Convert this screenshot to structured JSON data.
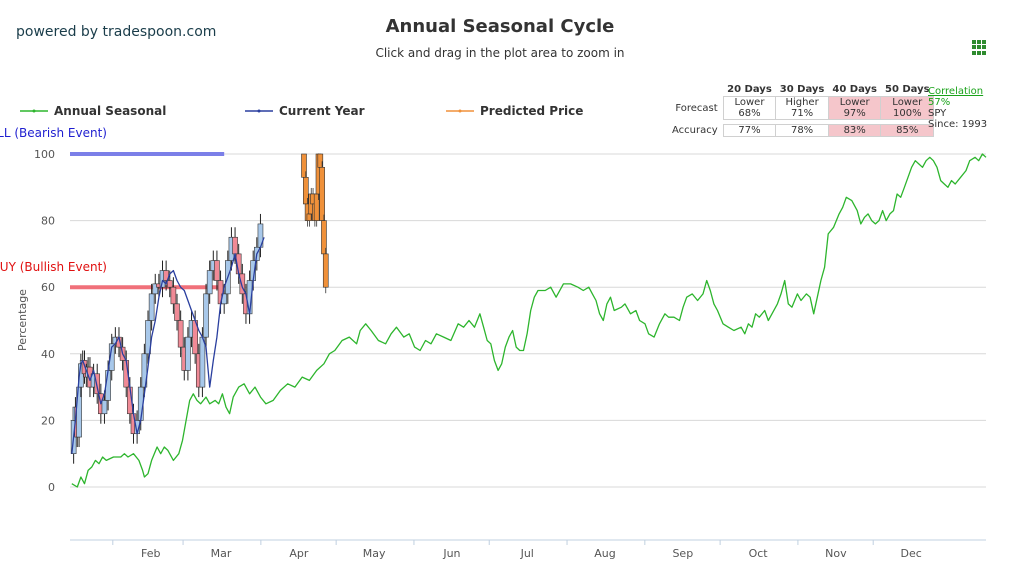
{
  "header": {
    "powered_by": "powered by tradespoon.com",
    "title": "Annual Seasonal Cycle",
    "subtitle": "Click and drag in the plot area to zoom in"
  },
  "legend": [
    {
      "name": "Annual Seasonal",
      "color": "#2db52d"
    },
    {
      "name": "Current Year",
      "color": "#2a3f9f"
    },
    {
      "name": "Predicted Price",
      "color": "#f0913a"
    }
  ],
  "stats": {
    "headers": [
      "20 Days",
      "30 Days",
      "40 Days",
      "50 Days"
    ],
    "forecast_label": "Forecast",
    "accuracy_label": "Accuracy",
    "forecast": [
      {
        "dir": "Lower",
        "pct": "68%",
        "highlight": false
      },
      {
        "dir": "Higher",
        "pct": "71%",
        "highlight": false
      },
      {
        "dir": "Lower",
        "pct": "97%",
        "highlight": true
      },
      {
        "dir": "Lower",
        "pct": "100%",
        "highlight": true
      }
    ],
    "accuracy": [
      {
        "pct": "77%",
        "highlight": false
      },
      {
        "pct": "78%",
        "highlight": false
      },
      {
        "pct": "83%",
        "highlight": true
      },
      {
        "pct": "85%",
        "highlight": true
      }
    ]
  },
  "correlation": {
    "label": "Correlation",
    "value": "57%",
    "symbol": "SPY",
    "since": "Since: 1993"
  },
  "chart_data": {
    "type": "line",
    "ylabel": "Percentage",
    "ylim": [
      -15,
      100
    ],
    "yticks": [
      0,
      20,
      40,
      60,
      80,
      100
    ],
    "grid": true,
    "months": [
      "Feb",
      "Mar",
      "Apr",
      "May",
      "Jun",
      "Jul",
      "Aug",
      "Sep",
      "Oct",
      "Nov",
      "Dec"
    ],
    "plot_bands": [
      {
        "label": "SELL (Bearish Event)",
        "value": 100,
        "color": "#7b7fe8",
        "text_color": "#1f1fd0",
        "until_day": 85
      },
      {
        "label": "BUY (Bullish Event)",
        "value": 60,
        "color": "#f0707a",
        "text_color": "#e01010",
        "until_day": 85
      }
    ],
    "annual_seasonal": {
      "name": "Annual Seasonal",
      "points": [
        [
          1,
          1
        ],
        [
          4,
          0
        ],
        [
          6,
          3
        ],
        [
          8,
          1
        ],
        [
          10,
          5
        ],
        [
          12,
          6
        ],
        [
          14,
          8
        ],
        [
          16,
          7
        ],
        [
          18,
          9
        ],
        [
          20,
          8
        ],
        [
          24,
          9
        ],
        [
          28,
          9
        ],
        [
          30,
          10
        ],
        [
          32,
          9
        ],
        [
          35,
          10
        ],
        [
          38,
          8
        ],
        [
          40,
          5
        ],
        [
          41,
          3
        ],
        [
          43,
          4
        ],
        [
          45,
          8
        ],
        [
          48,
          12
        ],
        [
          50,
          10
        ],
        [
          52,
          12
        ],
        [
          54,
          11
        ],
        [
          57,
          8
        ],
        [
          60,
          10
        ],
        [
          62,
          14
        ],
        [
          64,
          20
        ],
        [
          66,
          26
        ],
        [
          68,
          28
        ],
        [
          70,
          26
        ],
        [
          72,
          25
        ],
        [
          75,
          27
        ],
        [
          77,
          25
        ],
        [
          80,
          26
        ],
        [
          82,
          25
        ],
        [
          84,
          28
        ],
        [
          86,
          24
        ],
        [
          88,
          22
        ],
        [
          90,
          27
        ],
        [
          93,
          30
        ],
        [
          96,
          31
        ],
        [
          99,
          28
        ],
        [
          102,
          30
        ],
        [
          105,
          27
        ],
        [
          108,
          25
        ],
        [
          112,
          26
        ],
        [
          116,
          29
        ],
        [
          120,
          31
        ],
        [
          124,
          30
        ],
        [
          128,
          33
        ],
        [
          132,
          32
        ],
        [
          136,
          35
        ],
        [
          140,
          37
        ],
        [
          143,
          40
        ],
        [
          146,
          41
        ],
        [
          150,
          44
        ],
        [
          154,
          45
        ],
        [
          158,
          43
        ],
        [
          160,
          47
        ],
        [
          163,
          49
        ],
        [
          166,
          47
        ],
        [
          170,
          44
        ],
        [
          174,
          43
        ],
        [
          177,
          46
        ],
        [
          180,
          48
        ],
        [
          184,
          45
        ],
        [
          187,
          46
        ],
        [
          190,
          42
        ],
        [
          193,
          41
        ],
        [
          196,
          44
        ],
        [
          199,
          43
        ],
        [
          202,
          46
        ],
        [
          206,
          45
        ],
        [
          210,
          44
        ],
        [
          214,
          49
        ],
        [
          217,
          48
        ],
        [
          220,
          50
        ],
        [
          223,
          48
        ],
        [
          226,
          52
        ],
        [
          228,
          48
        ],
        [
          230,
          44
        ],
        [
          232,
          43
        ],
        [
          234,
          38
        ],
        [
          236,
          35
        ],
        [
          238,
          37
        ],
        [
          240,
          42
        ],
        [
          242,
          45
        ],
        [
          244,
          47
        ],
        [
          246,
          42
        ],
        [
          248,
          41
        ],
        [
          250,
          41
        ],
        [
          252,
          46
        ],
        [
          254,
          53
        ],
        [
          256,
          57
        ],
        [
          258,
          59
        ],
        [
          262,
          59
        ],
        [
          265,
          60
        ],
        [
          268,
          57
        ],
        [
          272,
          61
        ],
        [
          276,
          61
        ],
        [
          280,
          60
        ],
        [
          283,
          59
        ],
        [
          286,
          60
        ],
        [
          288,
          58
        ],
        [
          290,
          56
        ],
        [
          292,
          52
        ],
        [
          294,
          50
        ],
        [
          296,
          55
        ],
        [
          298,
          57
        ],
        [
          300,
          53
        ],
        [
          304,
          54
        ],
        [
          306,
          55
        ],
        [
          309,
          52
        ],
        [
          312,
          53
        ],
        [
          314,
          50
        ],
        [
          317,
          49
        ],
        [
          319,
          46
        ],
        [
          322,
          45
        ],
        [
          325,
          49
        ],
        [
          328,
          52
        ],
        [
          330,
          51
        ],
        [
          333,
          51
        ],
        [
          336,
          50
        ],
        [
          338,
          54
        ],
        [
          340,
          57
        ],
        [
          343,
          58
        ],
        [
          346,
          56
        ],
        [
          349,
          58
        ],
        [
          351,
          62
        ],
        [
          353,
          59
        ],
        [
          355,
          55
        ],
        [
          357,
          53
        ],
        [
          360,
          49
        ],
        [
          363,
          48
        ],
        [
          366,
          47
        ],
        [
          370,
          48
        ],
        [
          372,
          46
        ],
        [
          374,
          49
        ],
        [
          376,
          48
        ],
        [
          378,
          52
        ],
        [
          380,
          51
        ],
        [
          383,
          53
        ],
        [
          385,
          50
        ],
        [
          387,
          52
        ],
        [
          390,
          55
        ],
        [
          392,
          58
        ],
        [
          394,
          62
        ],
        [
          396,
          55
        ],
        [
          398,
          54
        ],
        [
          401,
          58
        ],
        [
          403,
          56
        ],
        [
          406,
          58
        ],
        [
          408,
          57
        ],
        [
          410,
          52
        ],
        [
          412,
          57
        ],
        [
          414,
          62
        ],
        [
          416,
          66
        ],
        [
          418,
          76
        ],
        [
          421,
          78
        ],
        [
          424,
          82
        ],
        [
          426,
          84
        ],
        [
          428,
          87
        ],
        [
          431,
          86
        ],
        [
          434,
          83
        ],
        [
          436,
          79
        ],
        [
          438,
          81
        ],
        [
          440,
          82
        ],
        [
          442,
          80
        ],
        [
          444,
          79
        ],
        [
          446,
          80
        ],
        [
          448,
          83
        ],
        [
          450,
          80
        ],
        [
          452,
          82
        ],
        [
          454,
          83
        ],
        [
          456,
          88
        ],
        [
          458,
          87
        ],
        [
          460,
          90
        ],
        [
          462,
          93
        ],
        [
          464,
          96
        ],
        [
          466,
          98
        ],
        [
          468,
          97
        ],
        [
          470,
          96
        ],
        [
          472,
          98
        ],
        [
          474,
          99
        ],
        [
          476,
          98
        ],
        [
          478,
          96
        ],
        [
          480,
          92
        ],
        [
          482,
          91
        ],
        [
          484,
          90
        ],
        [
          486,
          92
        ],
        [
          488,
          91
        ],
        [
          491,
          93
        ],
        [
          494,
          95
        ],
        [
          496,
          98
        ],
        [
          499,
          99
        ],
        [
          501,
          98
        ],
        [
          503,
          100
        ],
        [
          505,
          99
        ]
      ]
    },
    "current_year": {
      "name": "Current Year",
      "points": [
        [
          1,
          10
        ],
        [
          3,
          20
        ],
        [
          5,
          33
        ],
        [
          6,
          37
        ],
        [
          7,
          38
        ],
        [
          9,
          35
        ],
        [
          11,
          32
        ],
        [
          13,
          35
        ],
        [
          15,
          30
        ],
        [
          17,
          25
        ],
        [
          19,
          28
        ],
        [
          21,
          35
        ],
        [
          23,
          42
        ],
        [
          25,
          43
        ],
        [
          27,
          45
        ],
        [
          29,
          40
        ],
        [
          31,
          38
        ],
        [
          33,
          30
        ],
        [
          35,
          22
        ],
        [
          37,
          16
        ],
        [
          39,
          20
        ],
        [
          41,
          28
        ],
        [
          43,
          36
        ],
        [
          45,
          45
        ],
        [
          47,
          50
        ],
        [
          49,
          57
        ],
        [
          51,
          62
        ],
        [
          53,
          61
        ],
        [
          55,
          64
        ],
        [
          57,
          65
        ],
        [
          59,
          62
        ],
        [
          61,
          60
        ],
        [
          63,
          59
        ],
        [
          65,
          56
        ],
        [
          67,
          53
        ],
        [
          69,
          50
        ],
        [
          71,
          47
        ],
        [
          73,
          45
        ],
        [
          75,
          42
        ],
        [
          77,
          30
        ],
        [
          79,
          38
        ],
        [
          81,
          45
        ],
        [
          83,
          55
        ],
        [
          85,
          60
        ],
        [
          87,
          63
        ],
        [
          89,
          66
        ],
        [
          91,
          70
        ],
        [
          93,
          64
        ],
        [
          95,
          60
        ],
        [
          97,
          58
        ],
        [
          99,
          52
        ],
        [
          101,
          62
        ],
        [
          103,
          70
        ],
        [
          105,
          72
        ],
        [
          107,
          75
        ]
      ]
    },
    "current_candles": [
      [
        1,
        10
      ],
      [
        2,
        20
      ],
      [
        3,
        24
      ],
      [
        4,
        15
      ],
      [
        5,
        30
      ],
      [
        6,
        37
      ],
      [
        7,
        38
      ],
      [
        8,
        34
      ],
      [
        9,
        33
      ],
      [
        10,
        36
      ],
      [
        11,
        30
      ],
      [
        13,
        34
      ],
      [
        15,
        28
      ],
      [
        17,
        22
      ],
      [
        19,
        26
      ],
      [
        21,
        35
      ],
      [
        23,
        43
      ],
      [
        25,
        45
      ],
      [
        27,
        42
      ],
      [
        29,
        38
      ],
      [
        31,
        30
      ],
      [
        33,
        22
      ],
      [
        35,
        16
      ],
      [
        37,
        20
      ],
      [
        39,
        30
      ],
      [
        41,
        40
      ],
      [
        43,
        50
      ],
      [
        45,
        58
      ],
      [
        47,
        61
      ],
      [
        49,
        60
      ],
      [
        51,
        65
      ],
      [
        53,
        62
      ],
      [
        55,
        60
      ],
      [
        57,
        55
      ],
      [
        59,
        50
      ],
      [
        61,
        42
      ],
      [
        63,
        35
      ],
      [
        65,
        45
      ],
      [
        67,
        50
      ],
      [
        69,
        40
      ],
      [
        71,
        30
      ],
      [
        73,
        45
      ],
      [
        75,
        58
      ],
      [
        77,
        65
      ],
      [
        79,
        68
      ],
      [
        81,
        62
      ],
      [
        83,
        55
      ],
      [
        85,
        58
      ],
      [
        87,
        68
      ],
      [
        89,
        75
      ],
      [
        91,
        70
      ],
      [
        93,
        64
      ],
      [
        95,
        58
      ],
      [
        97,
        52
      ],
      [
        99,
        62
      ],
      [
        101,
        68
      ],
      [
        103,
        72
      ],
      [
        105,
        79
      ]
    ],
    "predicted_price": {
      "name": "Predicted Price",
      "points": [
        [
          128,
          100
        ],
        [
          129,
          93
        ],
        [
          130,
          85
        ],
        [
          131,
          80
        ],
        [
          132,
          82
        ],
        [
          133,
          88
        ],
        [
          134,
          85
        ],
        [
          135,
          80
        ],
        [
          136,
          88
        ],
        [
          137,
          100
        ],
        [
          138,
          96
        ],
        [
          139,
          80
        ],
        [
          140,
          70
        ],
        [
          141,
          60
        ]
      ]
    }
  }
}
